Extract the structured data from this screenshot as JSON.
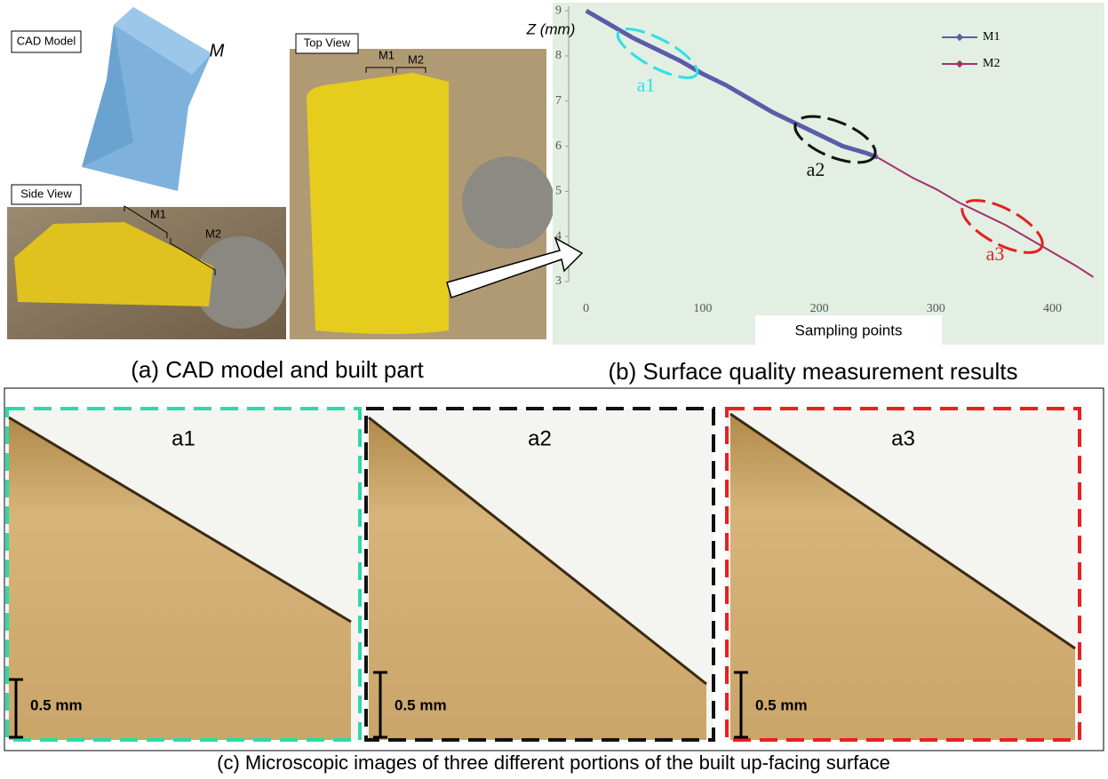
{
  "panel_a": {
    "cad_label": "CAD Model",
    "model_letter": "M",
    "side_label": "Side View",
    "side_m1": "M1",
    "side_m2": "M2",
    "top_label": "Top View",
    "top_m1": "M1",
    "top_m2": "M2",
    "caption": "(a) CAD model and built part"
  },
  "chart_data": {
    "type": "line",
    "ylabel": "Z (mm)",
    "xlabel": "Sampling points",
    "caption": "(b) Surface quality measurement results",
    "xlim": [
      -15,
      440
    ],
    "ylim": [
      3,
      9.1
    ],
    "xticks": [
      0,
      100,
      200,
      300,
      400
    ],
    "yticks": [
      3,
      4,
      5,
      6,
      7,
      8,
      9
    ],
    "legend": "upper right",
    "annotations": [
      "a1",
      "a2",
      "a3"
    ],
    "series": [
      {
        "name": "M1",
        "color": "#5a5ca8",
        "x": [
          0,
          20,
          40,
          60,
          80,
          100,
          120,
          140,
          160,
          180,
          200,
          220,
          240,
          250
        ],
        "values": [
          9.0,
          8.7,
          8.4,
          8.15,
          7.9,
          7.6,
          7.35,
          7.05,
          6.75,
          6.5,
          6.25,
          6.0,
          5.85,
          5.75
        ]
      },
      {
        "name": "M2",
        "color": "#a3306c",
        "x": [
          250,
          280,
          300,
          320,
          340,
          360,
          380,
          400,
          420,
          435
        ],
        "values": [
          5.75,
          5.3,
          5.05,
          4.75,
          4.5,
          4.25,
          3.95,
          3.65,
          3.35,
          3.1
        ]
      }
    ]
  },
  "panel_c": {
    "images": [
      {
        "label": "a1",
        "scale": "0.5 mm"
      },
      {
        "label": "a2",
        "scale": "0.5 mm"
      },
      {
        "label": "a3",
        "scale": "0.5 mm"
      }
    ],
    "caption": "(c) Microscopic images of three different portions of the built up-facing surface"
  }
}
